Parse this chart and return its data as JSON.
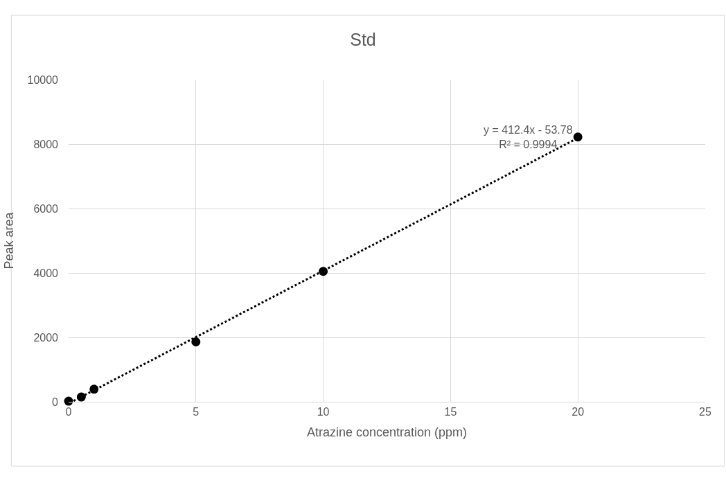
{
  "chart_data": {
    "type": "scatter",
    "title": "Std",
    "xlabel": "Atrazine concentration (ppm)",
    "ylabel": "Peak area",
    "xlim": [
      0,
      25
    ],
    "xticks": [
      0,
      5,
      10,
      15,
      20,
      25
    ],
    "ylim": [
      0,
      10000
    ],
    "yticks": [
      0,
      2000,
      4000,
      6000,
      8000,
      10000
    ],
    "grid": true,
    "marker": "circle",
    "series": [
      {
        "color": "#000000",
        "x": [
          0,
          0.5,
          1,
          5,
          10,
          20
        ],
        "values": [
          20,
          150,
          390,
          1860,
          4050,
          8220
        ]
      },
      {
        "type": "line",
        "color": "#000000",
        "line_style": "dotted",
        "marker": "none",
        "x": [
          0.2,
          20
        ],
        "values": [
          30,
          8190
        ]
      }
    ],
    "annotations": [
      {
        "text": "y = 412.4x - 53.78\nR² = 0.9994",
        "x": 20,
        "y": 8220
      }
    ]
  }
}
